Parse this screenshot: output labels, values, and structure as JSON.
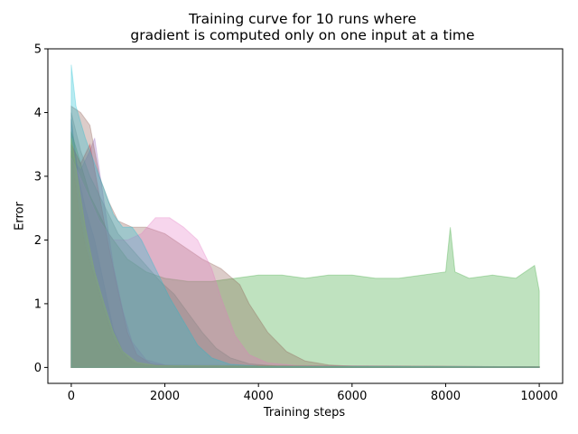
{
  "chart_data": {
    "type": "area",
    "title_lines": [
      "Training curve for 10 runs where",
      "gradient is computed only on one input at a time"
    ],
    "xlabel": "Training steps",
    "ylabel": "Error",
    "xlim": [
      -500,
      10500
    ],
    "ylim": [
      -0.25,
      5.0
    ],
    "x_ticks": [
      0,
      2000,
      4000,
      6000,
      8000,
      10000
    ],
    "y_ticks": [
      0,
      1,
      2,
      3,
      4,
      5
    ],
    "grid": false,
    "legend": "none",
    "opacity": 0.3,
    "series": [
      {
        "color": "#1f77b4",
        "values": [
          [
            0,
            3.9
          ],
          [
            150,
            3.0
          ],
          [
            300,
            2.5
          ],
          [
            500,
            2.0
          ],
          [
            700,
            1.3
          ],
          [
            900,
            0.6
          ],
          [
            1100,
            0.25
          ],
          [
            1300,
            0.08
          ],
          [
            1600,
            0.03
          ],
          [
            10000,
            0.01
          ]
        ]
      },
      {
        "color": "#ff7f0e",
        "values": [
          [
            0,
            3.4
          ],
          [
            150,
            2.5
          ],
          [
            300,
            1.9
          ],
          [
            500,
            1.4
          ],
          [
            700,
            0.9
          ],
          [
            900,
            0.45
          ],
          [
            1100,
            0.2
          ],
          [
            1400,
            0.06
          ],
          [
            1800,
            0.02
          ],
          [
            10000,
            0.01
          ]
        ]
      },
      {
        "color": "#2ca02c",
        "values": [
          [
            0,
            3.7
          ],
          [
            200,
            3.2
          ],
          [
            400,
            2.7
          ],
          [
            600,
            2.4
          ],
          [
            800,
            2.1
          ],
          [
            1000,
            1.9
          ],
          [
            1200,
            1.7
          ],
          [
            1400,
            1.6
          ],
          [
            1600,
            1.5
          ],
          [
            1800,
            1.45
          ],
          [
            2000,
            1.4
          ],
          [
            2500,
            1.35
          ],
          [
            3000,
            1.35
          ],
          [
            3500,
            1.4
          ],
          [
            4000,
            1.45
          ],
          [
            4500,
            1.45
          ],
          [
            5000,
            1.4
          ],
          [
            5500,
            1.45
          ],
          [
            6000,
            1.45
          ],
          [
            6500,
            1.4
          ],
          [
            7000,
            1.4
          ],
          [
            7500,
            1.45
          ],
          [
            8000,
            1.5
          ],
          [
            8100,
            2.2
          ],
          [
            8200,
            1.5
          ],
          [
            8500,
            1.4
          ],
          [
            9000,
            1.45
          ],
          [
            9500,
            1.4
          ],
          [
            9900,
            1.6
          ],
          [
            10000,
            1.2
          ]
        ]
      },
      {
        "color": "#d62728",
        "values": [
          [
            0,
            3.5
          ],
          [
            200,
            3.2
          ],
          [
            400,
            3.5
          ],
          [
            600,
            2.7
          ],
          [
            800,
            1.9
          ],
          [
            1000,
            1.2
          ],
          [
            1200,
            0.55
          ],
          [
            1400,
            0.2
          ],
          [
            1700,
            0.06
          ],
          [
            2200,
            0.02
          ],
          [
            10000,
            0.01
          ]
        ]
      },
      {
        "color": "#9467bd",
        "values": [
          [
            0,
            3.3
          ],
          [
            200,
            3.1
          ],
          [
            400,
            3.4
          ],
          [
            500,
            3.6
          ],
          [
            700,
            2.6
          ],
          [
            900,
            1.6
          ],
          [
            1100,
            0.9
          ],
          [
            1300,
            0.4
          ],
          [
            1600,
            0.12
          ],
          [
            2000,
            0.04
          ],
          [
            10000,
            0.01
          ]
        ]
      },
      {
        "color": "#8c564b",
        "values": [
          [
            0,
            4.1
          ],
          [
            200,
            4.0
          ],
          [
            400,
            3.8
          ],
          [
            600,
            3.0
          ],
          [
            800,
            2.6
          ],
          [
            1000,
            2.3
          ],
          [
            1300,
            2.2
          ],
          [
            1600,
            2.2
          ],
          [
            2000,
            2.1
          ],
          [
            2400,
            1.9
          ],
          [
            2800,
            1.7
          ],
          [
            3200,
            1.55
          ],
          [
            3600,
            1.3
          ],
          [
            3800,
            1.0
          ],
          [
            4200,
            0.55
          ],
          [
            4600,
            0.25
          ],
          [
            5000,
            0.1
          ],
          [
            5500,
            0.04
          ],
          [
            6000,
            0.02
          ],
          [
            10000,
            0.01
          ]
        ]
      },
      {
        "color": "#e377c2",
        "values": [
          [
            0,
            3.3
          ],
          [
            300,
            2.8
          ],
          [
            600,
            2.3
          ],
          [
            900,
            2.0
          ],
          [
            1200,
            2.0
          ],
          [
            1500,
            2.1
          ],
          [
            1800,
            2.35
          ],
          [
            2100,
            2.35
          ],
          [
            2400,
            2.2
          ],
          [
            2700,
            2.0
          ],
          [
            3000,
            1.55
          ],
          [
            3200,
            1.1
          ],
          [
            3500,
            0.5
          ],
          [
            3800,
            0.2
          ],
          [
            4200,
            0.07
          ],
          [
            4800,
            0.03
          ],
          [
            10000,
            0.01
          ]
        ]
      },
      {
        "color": "#7f7f7f",
        "values": [
          [
            0,
            4.0
          ],
          [
            200,
            3.4
          ],
          [
            400,
            3.0
          ],
          [
            600,
            2.7
          ],
          [
            800,
            2.4
          ],
          [
            1000,
            2.1
          ],
          [
            1300,
            1.85
          ],
          [
            1600,
            1.6
          ],
          [
            1900,
            1.35
          ],
          [
            2200,
            1.15
          ],
          [
            2500,
            0.85
          ],
          [
            2800,
            0.55
          ],
          [
            3100,
            0.3
          ],
          [
            3400,
            0.15
          ],
          [
            3800,
            0.06
          ],
          [
            4400,
            0.02
          ],
          [
            10000,
            0.01
          ]
        ]
      },
      {
        "color": "#bcbd22",
        "values": [
          [
            0,
            3.6
          ],
          [
            150,
            2.9
          ],
          [
            300,
            2.2
          ],
          [
            500,
            1.5
          ],
          [
            700,
            1.0
          ],
          [
            900,
            0.55
          ],
          [
            1100,
            0.25
          ],
          [
            1400,
            0.08
          ],
          [
            1800,
            0.03
          ],
          [
            10000,
            0.01
          ]
        ]
      },
      {
        "color": "#17becf",
        "values": [
          [
            0,
            4.75
          ],
          [
            100,
            4.1
          ],
          [
            300,
            3.6
          ],
          [
            500,
            3.2
          ],
          [
            700,
            2.8
          ],
          [
            900,
            2.4
          ],
          [
            1100,
            2.2
          ],
          [
            1300,
            2.2
          ],
          [
            1500,
            2.0
          ],
          [
            1700,
            1.7
          ],
          [
            1900,
            1.4
          ],
          [
            2100,
            1.1
          ],
          [
            2300,
            0.85
          ],
          [
            2500,
            0.6
          ],
          [
            2700,
            0.35
          ],
          [
            3000,
            0.15
          ],
          [
            3400,
            0.05
          ],
          [
            4000,
            0.02
          ],
          [
            10000,
            0.01
          ]
        ]
      }
    ]
  }
}
